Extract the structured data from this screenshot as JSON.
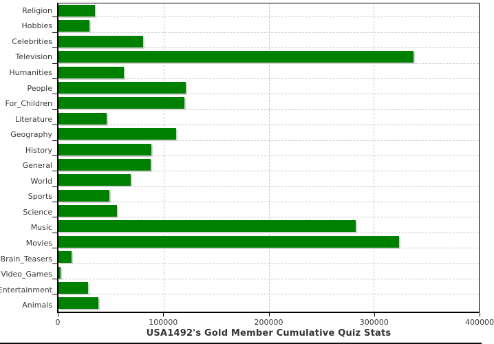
{
  "chart_data": {
    "type": "bar",
    "orientation": "horizontal",
    "title": "USA1492's Gold Member Cumulative Quiz Stats",
    "categories": [
      "Religion",
      "Hobbies",
      "Celebrities",
      "Television",
      "Humanities",
      "People",
      "For_Children",
      "Literature",
      "Geography",
      "History",
      "General",
      "World",
      "Sports",
      "Science",
      "Music",
      "Movies",
      "Brain_Teasers",
      "Video_Games",
      "Entertainment",
      "Animals"
    ],
    "values": [
      35000,
      29500,
      80500,
      338000,
      62000,
      121000,
      120000,
      46000,
      112000,
      88500,
      88000,
      68500,
      48500,
      55500,
      283000,
      324000,
      12500,
      2000,
      28000,
      38000
    ],
    "xlabel": "",
    "ylabel": "",
    "xlim": [
      0,
      400000
    ],
    "x_ticks": [
      0,
      100000,
      200000,
      300000,
      400000
    ],
    "x_tick_labels": [
      "0",
      "100000",
      "200000",
      "300000",
      "400000"
    ],
    "grid": "vertical dashed gridlines at each x tick; dashed separator under each bar row",
    "legend": "none",
    "colors": {
      "bar": "#008000",
      "bar_shadow": "#d2d2d2",
      "grid_line": "#c8c8c8",
      "axis": "#000000",
      "text": "#383838",
      "background": "#ffffff"
    }
  }
}
